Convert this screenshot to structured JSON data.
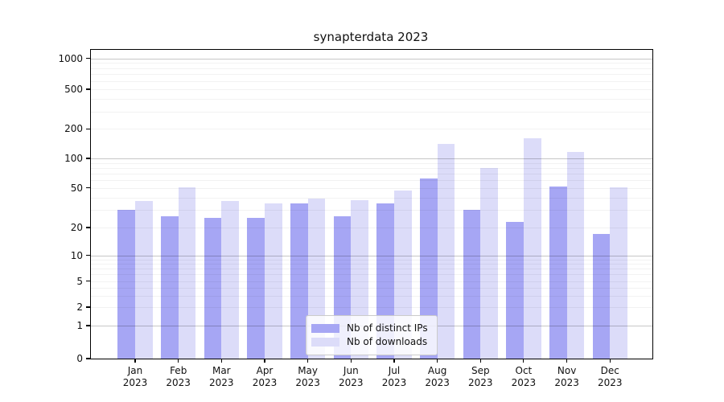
{
  "chart_data": {
    "type": "bar",
    "title": "synapterdata 2023",
    "categories": [
      "Jan 2023",
      "Feb 2023",
      "Mar 2023",
      "Apr 2023",
      "May 2023",
      "Jun 2023",
      "Jul 2023",
      "Aug 2023",
      "Sep 2023",
      "Oct 2023",
      "Nov 2023",
      "Dec 2023"
    ],
    "month_labels": [
      "Jan",
      "Feb",
      "Mar",
      "Apr",
      "May",
      "Jun",
      "Jul",
      "Aug",
      "Sep",
      "Oct",
      "Nov",
      "Dec"
    ],
    "year_label": "2023",
    "series": [
      {
        "name": "Nb of distinct IPs",
        "color": "#a6a6f4",
        "values": [
          30,
          26,
          25,
          25,
          35,
          26,
          35,
          63,
          30,
          23,
          52,
          17
        ]
      },
      {
        "name": "Nb of downloads",
        "color": "#dcdcf9",
        "values": [
          37,
          51,
          37,
          35,
          39,
          38,
          47,
          140,
          80,
          160,
          116,
          51
        ]
      }
    ],
    "xlabel": "",
    "ylabel": "",
    "y_ticks": [
      0,
      1,
      2,
      5,
      10,
      20,
      50,
      100,
      200,
      500,
      1000
    ],
    "y_scale": "symlog",
    "ylim": [
      0,
      1260
    ],
    "grid": true,
    "grid_minor_values": [
      2,
      3,
      4,
      5,
      6,
      7,
      8,
      9,
      20,
      30,
      40,
      50,
      60,
      70,
      80,
      90,
      200,
      300,
      400,
      500,
      600,
      700,
      800,
      900
    ],
    "grid_major_values": [
      1,
      10,
      100,
      1000
    ],
    "legend_position": "lower center",
    "legend_entries": [
      "Nb of distinct IPs",
      "Nb of downloads"
    ]
  }
}
